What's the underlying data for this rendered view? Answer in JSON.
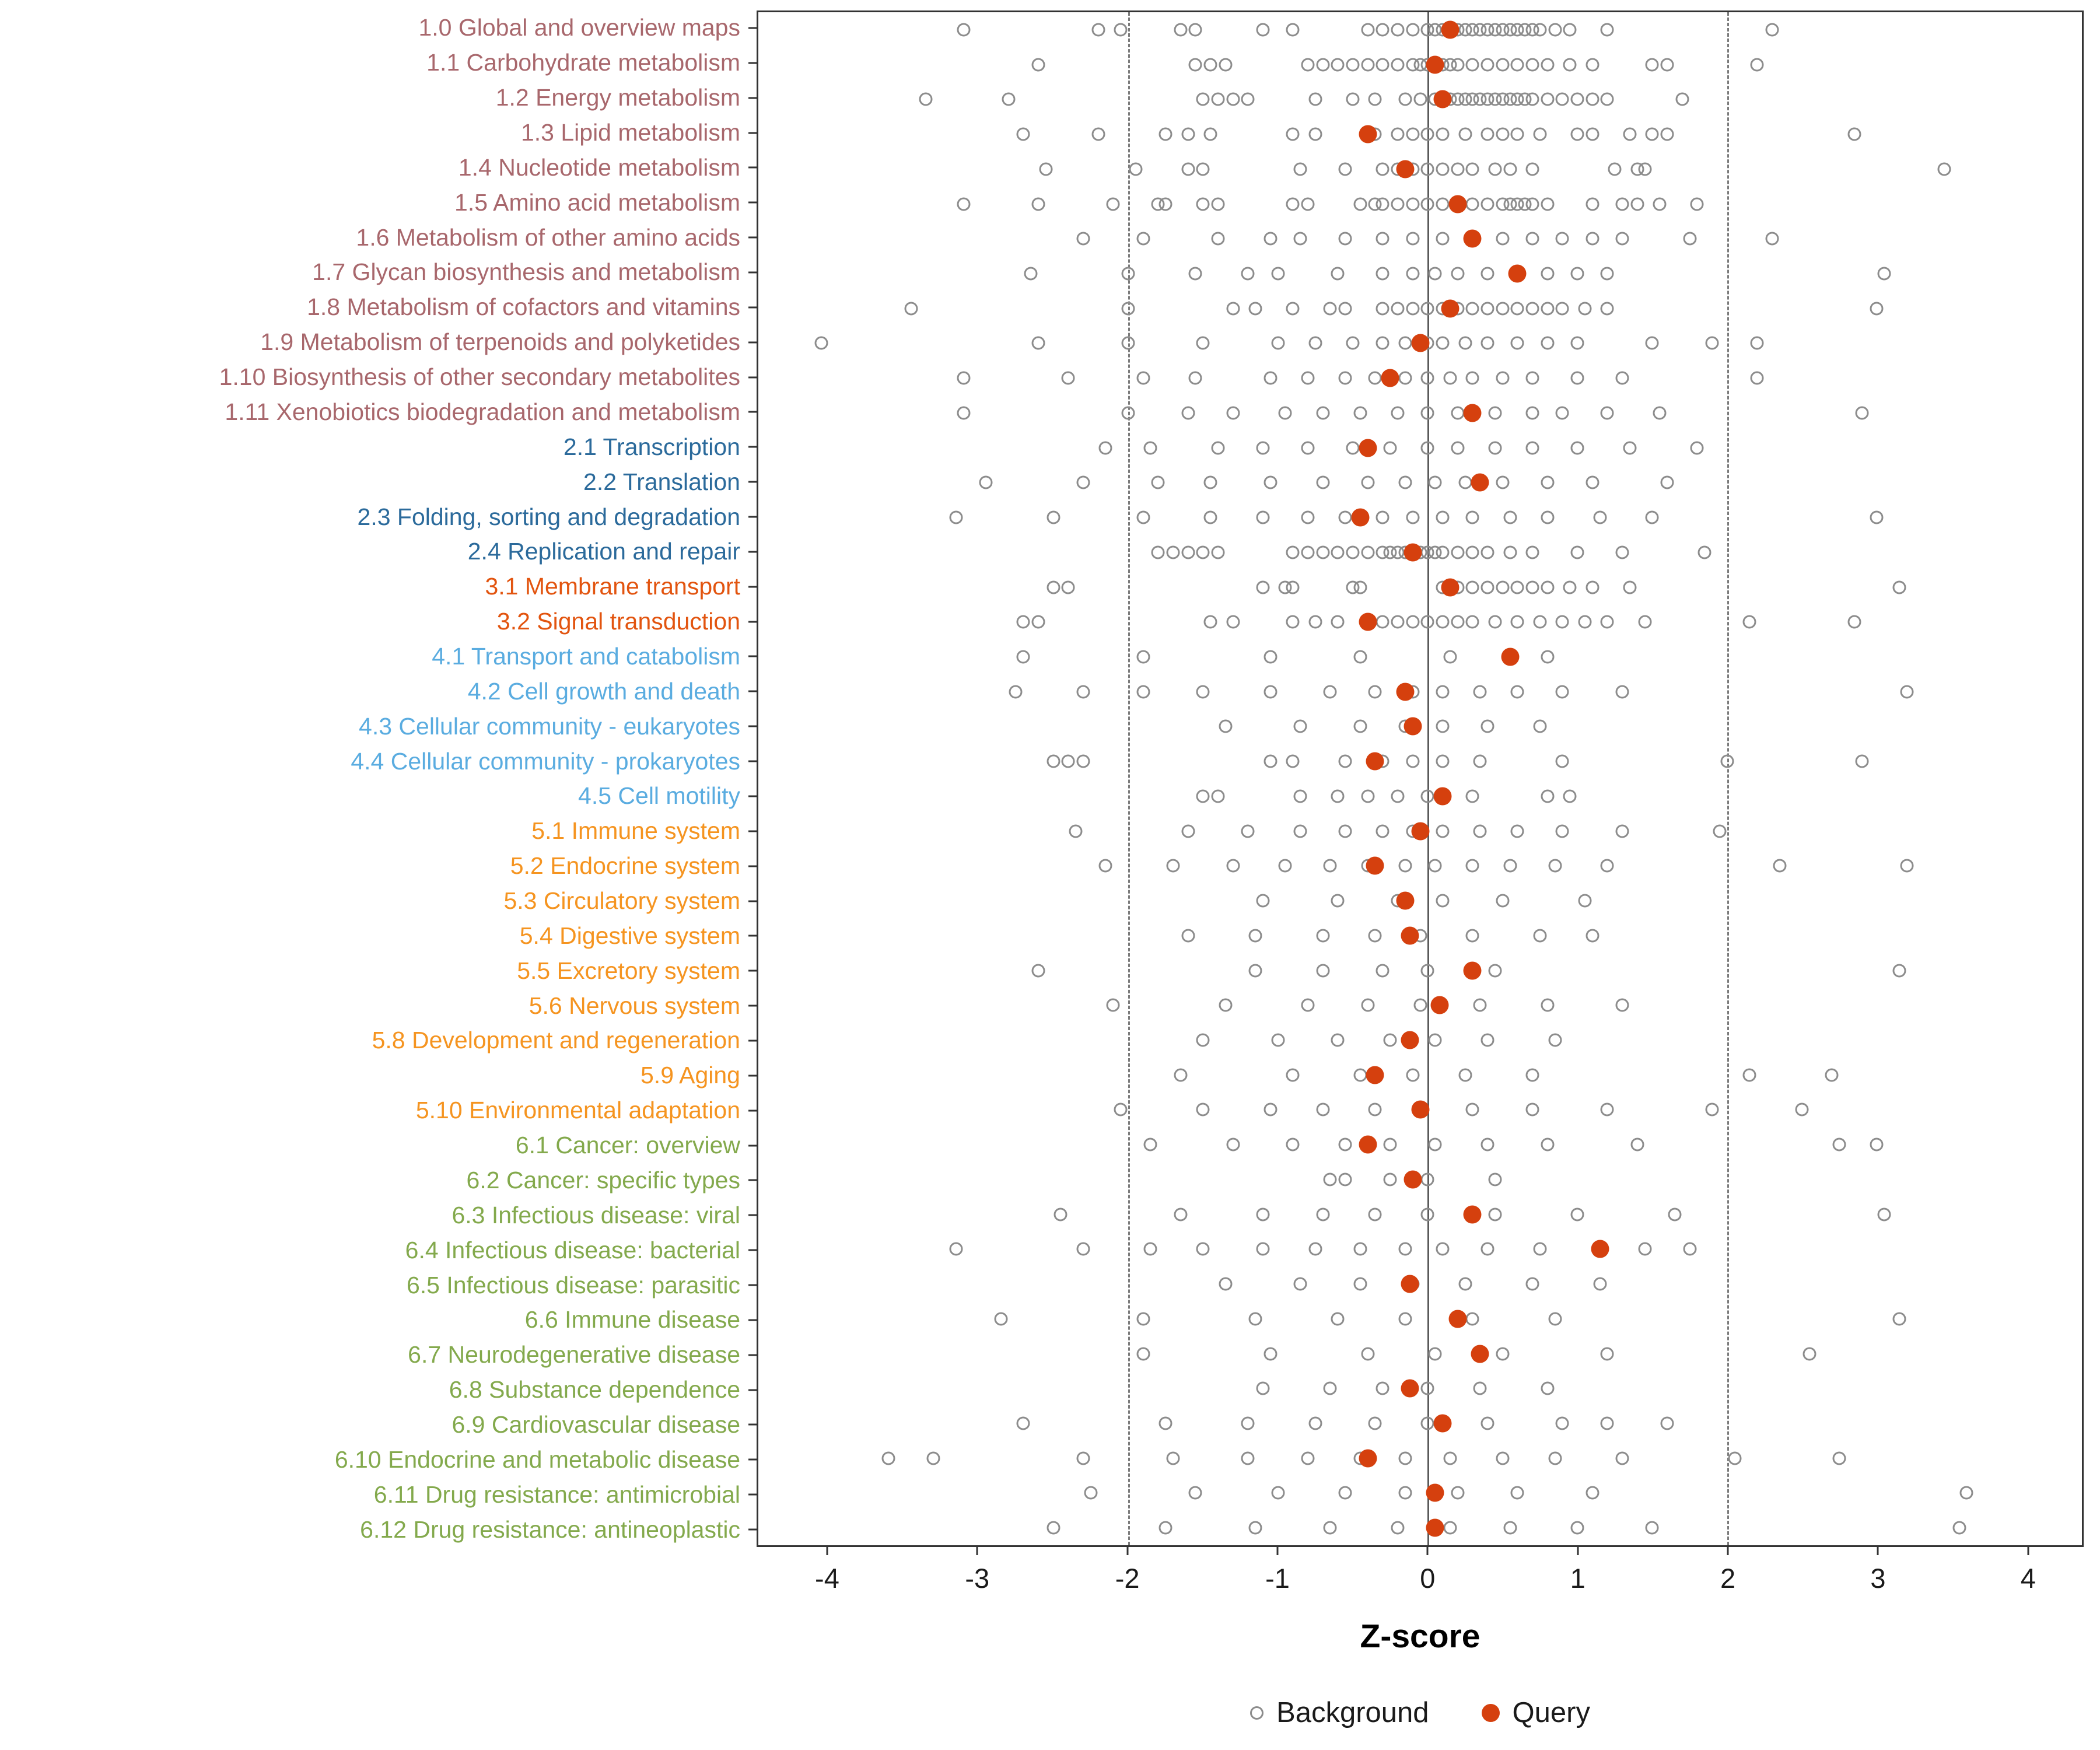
{
  "chart_data": {
    "type": "scatter",
    "xlabel": "Z-score",
    "xlim": [
      -4.47,
      4.37
    ],
    "x_ticks": [
      -4,
      -3,
      -2,
      -1,
      0,
      1,
      2,
      3,
      4
    ],
    "reference_lines": {
      "solid": [
        0
      ],
      "dashed": [
        -2,
        2
      ]
    },
    "legend": {
      "background_label": "Background",
      "query_label": "Query"
    },
    "grid": "off",
    "legend_position": "bottom",
    "colors": {
      "background_point": "#8C8C8C",
      "query_point": "#D5400E",
      "axis_text": "#1A1A1A",
      "group_1": "#A8676C",
      "group_2": "#2B6A9B",
      "group_3": "#E2540F",
      "group_4": "#5AACE0",
      "group_5": "#F59420",
      "group_6": "#83A94C"
    },
    "rows": [
      {
        "label": "1.0 Global and overview maps",
        "group": "1",
        "query": 0.15,
        "background": [
          -3.1,
          -2.2,
          -2.05,
          -1.65,
          -1.55,
          -1.1,
          -0.9,
          -0.4,
          -0.3,
          -0.2,
          -0.1,
          0.0,
          0.05,
          0.1,
          0.2,
          0.25,
          0.3,
          0.35,
          0.4,
          0.45,
          0.5,
          0.55,
          0.6,
          0.65,
          0.7,
          0.75,
          0.85,
          0.95,
          1.2,
          2.3
        ]
      },
      {
        "label": "1.1 Carbohydrate metabolism",
        "group": "1",
        "query": 0.05,
        "background": [
          -2.6,
          -1.55,
          -1.45,
          -1.35,
          -0.8,
          -0.7,
          -0.6,
          -0.5,
          -0.4,
          -0.3,
          -0.2,
          -0.1,
          -0.05,
          0.0,
          0.1,
          0.15,
          0.2,
          0.3,
          0.4,
          0.5,
          0.6,
          0.7,
          0.8,
          0.95,
          1.1,
          1.5,
          1.6,
          2.2
        ]
      },
      {
        "label": "1.2 Energy metabolism",
        "group": "1",
        "query": 0.1,
        "background": [
          -3.35,
          -2.8,
          -1.5,
          -1.4,
          -1.3,
          -1.2,
          -0.75,
          -0.5,
          -0.35,
          -0.15,
          -0.05,
          0.05,
          0.1,
          0.15,
          0.2,
          0.25,
          0.3,
          0.35,
          0.4,
          0.45,
          0.5,
          0.55,
          0.6,
          0.65,
          0.7,
          0.8,
          0.9,
          1.0,
          1.1,
          1.2,
          1.7
        ]
      },
      {
        "label": "1.3 Lipid metabolism",
        "group": "1",
        "query": -0.4,
        "background": [
          -2.7,
          -2.2,
          -1.75,
          -1.6,
          -1.45,
          -0.9,
          -0.75,
          -0.35,
          -0.2,
          -0.1,
          0.0,
          0.1,
          0.25,
          0.4,
          0.5,
          0.6,
          0.75,
          1.0,
          1.1,
          1.35,
          1.5,
          1.6,
          2.85
        ]
      },
      {
        "label": "1.4 Nucleotide metabolism",
        "group": "1",
        "query": -0.15,
        "background": [
          -2.55,
          -1.95,
          -1.6,
          -1.5,
          -0.85,
          -0.55,
          -0.3,
          -0.2,
          -0.1,
          0.0,
          0.1,
          0.2,
          0.3,
          0.45,
          0.55,
          0.7,
          1.25,
          1.4,
          1.45,
          3.45
        ]
      },
      {
        "label": "1.5 Amino acid metabolism",
        "group": "1",
        "query": 0.2,
        "background": [
          -3.1,
          -2.6,
          -2.1,
          -1.8,
          -1.75,
          -1.5,
          -1.4,
          -0.9,
          -0.8,
          -0.45,
          -0.35,
          -0.3,
          -0.2,
          -0.1,
          0.0,
          0.1,
          0.3,
          0.4,
          0.5,
          0.55,
          0.6,
          0.65,
          0.7,
          0.8,
          1.1,
          1.3,
          1.4,
          1.55,
          1.8
        ]
      },
      {
        "label": "1.6 Metabolism of other amino acids",
        "group": "1",
        "query": 0.3,
        "background": [
          -2.3,
          -1.9,
          -1.4,
          -1.05,
          -0.85,
          -0.55,
          -0.3,
          -0.1,
          0.1,
          0.5,
          0.7,
          0.9,
          1.1,
          1.3,
          1.75,
          2.3
        ]
      },
      {
        "label": "1.7 Glycan biosynthesis and metabolism",
        "group": "1",
        "query": 0.6,
        "background": [
          -2.65,
          -2.0,
          -1.55,
          -1.2,
          -1.0,
          -0.6,
          -0.3,
          -0.1,
          0.05,
          0.2,
          0.4,
          0.8,
          1.0,
          1.2,
          3.05
        ]
      },
      {
        "label": "1.8 Metabolism of cofactors and vitamins",
        "group": "1",
        "query": 0.15,
        "background": [
          -3.45,
          -2.0,
          -1.3,
          -1.15,
          -0.9,
          -0.65,
          -0.55,
          -0.3,
          -0.2,
          -0.1,
          0.0,
          0.1,
          0.2,
          0.3,
          0.4,
          0.5,
          0.6,
          0.7,
          0.8,
          0.9,
          1.05,
          1.2,
          3.0
        ]
      },
      {
        "label": "1.9 Metabolism of terpenoids and polyketides",
        "group": "1",
        "query": -0.05,
        "background": [
          -4.05,
          -2.6,
          -2.0,
          -1.5,
          -1.0,
          -0.75,
          -0.5,
          -0.3,
          -0.15,
          0.0,
          0.1,
          0.25,
          0.4,
          0.6,
          0.8,
          1.0,
          1.5,
          1.9,
          2.2
        ]
      },
      {
        "label": "1.10 Biosynthesis of other secondary metabolites",
        "group": "1",
        "query": -0.25,
        "background": [
          -3.1,
          -2.4,
          -1.9,
          -1.55,
          -1.05,
          -0.8,
          -0.55,
          -0.35,
          -0.15,
          0.0,
          0.15,
          0.3,
          0.5,
          0.7,
          1.0,
          1.3,
          2.2
        ]
      },
      {
        "label": "1.11 Xenobiotics biodegradation and metabolism",
        "group": "1",
        "query": 0.3,
        "background": [
          -3.1,
          -2.0,
          -1.6,
          -1.3,
          -0.95,
          -0.7,
          -0.45,
          -0.2,
          0.0,
          0.2,
          0.45,
          0.7,
          0.9,
          1.2,
          1.55,
          2.9
        ]
      },
      {
        "label": "2.1 Transcription",
        "group": "2",
        "query": -0.4,
        "background": [
          -2.15,
          -1.85,
          -1.4,
          -1.1,
          -0.8,
          -0.5,
          -0.25,
          0.0,
          0.2,
          0.45,
          0.7,
          1.0,
          1.35,
          1.8
        ]
      },
      {
        "label": "2.2 Translation",
        "group": "2",
        "query": 0.35,
        "background": [
          -2.95,
          -2.3,
          -1.8,
          -1.45,
          -1.05,
          -0.7,
          -0.4,
          -0.15,
          0.05,
          0.25,
          0.5,
          0.8,
          1.1,
          1.6
        ]
      },
      {
        "label": "2.3 Folding, sorting and degradation",
        "group": "2",
        "query": -0.45,
        "background": [
          -3.15,
          -2.5,
          -1.9,
          -1.45,
          -1.1,
          -0.8,
          -0.55,
          -0.3,
          -0.1,
          0.1,
          0.3,
          0.55,
          0.8,
          1.15,
          1.5,
          3.0
        ]
      },
      {
        "label": "2.4 Replication and repair",
        "group": "2",
        "query": -0.1,
        "background": [
          -1.8,
          -1.7,
          -1.6,
          -1.5,
          -1.4,
          -0.9,
          -0.8,
          -0.7,
          -0.6,
          -0.5,
          -0.4,
          -0.3,
          -0.25,
          -0.2,
          -0.15,
          -0.1,
          -0.05,
          0.0,
          0.05,
          0.1,
          0.2,
          0.3,
          0.4,
          0.55,
          0.7,
          1.0,
          1.3,
          1.85
        ]
      },
      {
        "label": "3.1 Membrane transport",
        "group": "3",
        "query": 0.15,
        "background": [
          -2.5,
          -2.4,
          -1.1,
          -0.95,
          -0.9,
          -0.5,
          -0.45,
          0.1,
          0.2,
          0.3,
          0.4,
          0.5,
          0.6,
          0.7,
          0.8,
          0.95,
          1.1,
          1.35,
          3.15
        ]
      },
      {
        "label": "3.2 Signal transduction",
        "group": "3",
        "query": -0.4,
        "background": [
          -2.7,
          -2.6,
          -1.45,
          -1.3,
          -0.9,
          -0.75,
          -0.6,
          -0.3,
          -0.2,
          -0.1,
          0.0,
          0.1,
          0.2,
          0.3,
          0.45,
          0.6,
          0.75,
          0.9,
          1.05,
          1.2,
          1.45,
          2.15,
          2.85
        ]
      },
      {
        "label": "4.1 Transport and catabolism",
        "group": "4",
        "query": 0.55,
        "background": [
          -2.7,
          -1.9,
          -1.05,
          -0.45,
          0.15,
          0.8
        ]
      },
      {
        "label": "4.2 Cell growth and death",
        "group": "4",
        "query": -0.15,
        "background": [
          -2.75,
          -2.3,
          -1.9,
          -1.5,
          -1.05,
          -0.65,
          -0.35,
          -0.1,
          0.1,
          0.35,
          0.6,
          0.9,
          1.3,
          3.2
        ]
      },
      {
        "label": "4.3 Cellular community - eukaryotes",
        "group": "4",
        "query": -0.1,
        "background": [
          -1.35,
          -0.85,
          -0.45,
          -0.15,
          0.1,
          0.4,
          0.75
        ]
      },
      {
        "label": "4.4 Cellular community - prokaryotes",
        "group": "4",
        "query": -0.35,
        "background": [
          -2.5,
          -2.4,
          -2.3,
          -1.05,
          -0.9,
          -0.55,
          -0.3,
          -0.1,
          0.1,
          0.35,
          0.9,
          2.0,
          2.9
        ]
      },
      {
        "label": "4.5 Cell motility",
        "group": "4",
        "query": 0.1,
        "background": [
          -1.5,
          -1.4,
          -0.85,
          -0.6,
          -0.4,
          -0.2,
          0.0,
          0.3,
          0.8,
          0.95
        ]
      },
      {
        "label": "5.1 Immune system",
        "group": "5",
        "query": -0.05,
        "background": [
          -2.35,
          -1.6,
          -1.2,
          -0.85,
          -0.55,
          -0.3,
          -0.1,
          0.1,
          0.35,
          0.6,
          0.9,
          1.3,
          1.95
        ]
      },
      {
        "label": "5.2 Endocrine system",
        "group": "5",
        "query": -0.35,
        "background": [
          -2.15,
          -1.7,
          -1.3,
          -0.95,
          -0.65,
          -0.4,
          -0.15,
          0.05,
          0.3,
          0.55,
          0.85,
          1.2,
          2.35,
          3.2
        ]
      },
      {
        "label": "5.3 Circulatory system",
        "group": "5",
        "query": -0.15,
        "background": [
          -1.1,
          -0.6,
          -0.2,
          0.1,
          0.5,
          1.05
        ]
      },
      {
        "label": "5.4 Digestive system",
        "group": "5",
        "query": -0.12,
        "background": [
          -1.6,
          -1.15,
          -0.7,
          -0.35,
          -0.05,
          0.3,
          0.75,
          1.1
        ]
      },
      {
        "label": "5.5 Excretory system",
        "group": "5",
        "query": 0.3,
        "background": [
          -2.6,
          -1.15,
          -0.7,
          -0.3,
          0.0,
          0.45,
          3.15
        ]
      },
      {
        "label": "5.6 Nervous system",
        "group": "5",
        "query": 0.08,
        "background": [
          -2.1,
          -1.35,
          -0.8,
          -0.4,
          -0.05,
          0.35,
          0.8,
          1.3
        ]
      },
      {
        "label": "5.8 Development and regeneration",
        "group": "5",
        "query": -0.12,
        "background": [
          -1.5,
          -1.0,
          -0.6,
          -0.25,
          0.05,
          0.4,
          0.85
        ]
      },
      {
        "label": "5.9 Aging",
        "group": "5",
        "query": -0.35,
        "background": [
          -1.65,
          -0.9,
          -0.45,
          -0.1,
          0.25,
          0.7,
          2.15,
          2.7
        ]
      },
      {
        "label": "5.10 Environmental adaptation",
        "group": "5",
        "query": -0.05,
        "background": [
          -2.05,
          -1.5,
          -1.05,
          -0.7,
          -0.35,
          -0.05,
          0.3,
          0.7,
          1.2,
          1.9,
          2.5
        ]
      },
      {
        "label": "6.1 Cancer: overview",
        "group": "6",
        "query": -0.4,
        "background": [
          -1.85,
          -1.3,
          -0.9,
          -0.55,
          -0.25,
          0.05,
          0.4,
          0.8,
          1.4,
          2.75,
          3.0
        ]
      },
      {
        "label": "6.2 Cancer: specific types",
        "group": "6",
        "query": -0.1,
        "background": [
          -0.65,
          -0.55,
          -0.25,
          0.0,
          0.45
        ]
      },
      {
        "label": "6.3 Infectious disease: viral",
        "group": "6",
        "query": 0.3,
        "background": [
          -2.45,
          -1.65,
          -1.1,
          -0.7,
          -0.35,
          0.0,
          0.45,
          1.0,
          1.65,
          3.05
        ]
      },
      {
        "label": "6.4 Infectious disease: bacterial",
        "group": "6",
        "query": 1.15,
        "background": [
          -3.15,
          -2.3,
          -1.85,
          -1.5,
          -1.1,
          -0.75,
          -0.45,
          -0.15,
          0.1,
          0.4,
          0.75,
          1.45,
          1.75
        ]
      },
      {
        "label": "6.5 Infectious disease: parasitic",
        "group": "6",
        "query": -0.12,
        "background": [
          -1.35,
          -0.85,
          -0.45,
          -0.1,
          0.25,
          0.7,
          1.15
        ]
      },
      {
        "label": "6.6 Immune disease",
        "group": "6",
        "query": 0.2,
        "background": [
          -2.85,
          -1.9,
          -1.15,
          -0.6,
          -0.15,
          0.3,
          0.85,
          3.15
        ]
      },
      {
        "label": "6.7 Neurodegenerative disease",
        "group": "6",
        "query": 0.35,
        "background": [
          -1.9,
          -1.05,
          -0.4,
          0.05,
          0.5,
          1.2,
          2.55
        ]
      },
      {
        "label": "6.8 Substance dependence",
        "group": "6",
        "query": -0.12,
        "background": [
          -1.1,
          -0.65,
          -0.3,
          0.0,
          0.35,
          0.8
        ]
      },
      {
        "label": "6.9 Cardiovascular disease",
        "group": "6",
        "query": 0.1,
        "background": [
          -2.7,
          -1.75,
          -1.2,
          -0.75,
          -0.35,
          0.0,
          0.4,
          0.9,
          1.2,
          1.6
        ]
      },
      {
        "label": "6.10 Endocrine and metabolic disease",
        "group": "6",
        "query": -0.4,
        "background": [
          -3.6,
          -3.3,
          -2.3,
          -1.7,
          -1.2,
          -0.8,
          -0.45,
          -0.15,
          0.15,
          0.5,
          0.85,
          1.3,
          2.05,
          2.75
        ]
      },
      {
        "label": "6.11 Drug resistance: antimicrobial",
        "group": "6",
        "query": 0.05,
        "background": [
          -2.25,
          -1.55,
          -1.0,
          -0.55,
          -0.15,
          0.2,
          0.6,
          1.1,
          3.6
        ]
      },
      {
        "label": "6.12 Drug resistance: antineoplastic",
        "group": "6",
        "query": 0.05,
        "background": [
          -2.5,
          -1.75,
          -1.15,
          -0.65,
          -0.2,
          0.15,
          0.55,
          1.0,
          1.5,
          3.55
        ]
      }
    ]
  }
}
